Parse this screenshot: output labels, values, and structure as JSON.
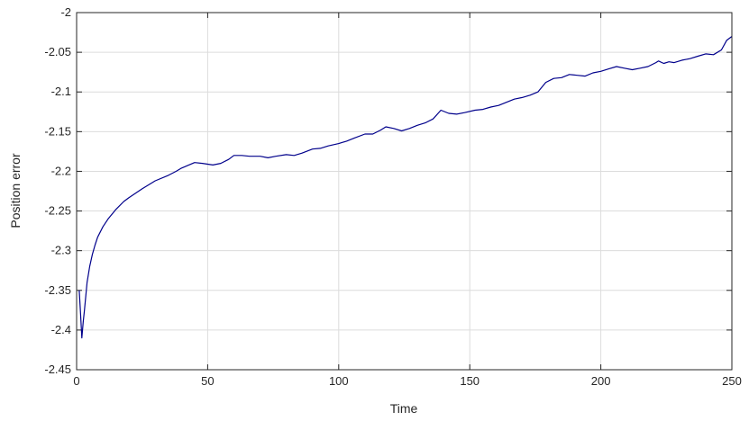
{
  "chart_data": {
    "type": "line",
    "title": "",
    "xlabel": "Time",
    "ylabel": "Position error",
    "xlim": [
      0,
      250
    ],
    "ylim": [
      -2.45,
      -2.0
    ],
    "xticks": [
      0,
      50,
      100,
      150,
      200,
      250
    ],
    "xtick_labels": [
      "0",
      "50",
      "100",
      "150",
      "200",
      "250"
    ],
    "yticks": [
      -2.0,
      -2.05,
      -2.1,
      -2.15,
      -2.2,
      -2.25,
      -2.3,
      -2.35,
      -2.4,
      -2.45
    ],
    "ytick_labels": [
      "-2",
      "-2.05",
      "-2.1",
      "-2.15",
      "-2.2",
      "-2.25",
      "-2.3",
      "-2.35",
      "-2.4",
      "-2.45"
    ],
    "grid": true,
    "legend": "none",
    "series": [
      {
        "color": "#00008b",
        "x": [
          1,
          1.5,
          2,
          2.5,
          3,
          4,
          5,
          6,
          7,
          8,
          10,
          12,
          15,
          18,
          20,
          25,
          30,
          35,
          38,
          40,
          45,
          48,
          52,
          55,
          58,
          60,
          63,
          66,
          70,
          73,
          76,
          80,
          83,
          86,
          90,
          93,
          96,
          100,
          103,
          106,
          110,
          113,
          116,
          118,
          121,
          124,
          127,
          130,
          133,
          136,
          139,
          142,
          145,
          148,
          152,
          155,
          158,
          161,
          164,
          167,
          170,
          173,
          176,
          179,
          182,
          185,
          188,
          191,
          194,
          197,
          200,
          203,
          206,
          209,
          212,
          215,
          218,
          221,
          222,
          224,
          226,
          228,
          231,
          234,
          237,
          240,
          243,
          246,
          248,
          250
        ],
        "y": [
          -2.35,
          -2.38,
          -2.41,
          -2.39,
          -2.375,
          -2.34,
          -2.32,
          -2.305,
          -2.293,
          -2.283,
          -2.27,
          -2.26,
          -2.248,
          -2.238,
          -2.233,
          -2.222,
          -2.212,
          -2.205,
          -2.2,
          -2.196,
          -2.189,
          -2.19,
          -2.192,
          -2.19,
          -2.185,
          -2.18,
          -2.18,
          -2.181,
          -2.181,
          -2.183,
          -2.181,
          -2.179,
          -2.18,
          -2.177,
          -2.172,
          -2.171,
          -2.168,
          -2.165,
          -2.162,
          -2.158,
          -2.153,
          -2.153,
          -2.148,
          -2.144,
          -2.146,
          -2.149,
          -2.146,
          -2.142,
          -2.139,
          -2.134,
          -2.123,
          -2.127,
          -2.128,
          -2.126,
          -2.123,
          -2.122,
          -2.119,
          -2.117,
          -2.113,
          -2.109,
          -2.107,
          -2.104,
          -2.1,
          -2.088,
          -2.083,
          -2.082,
          -2.078,
          -2.079,
          -2.08,
          -2.076,
          -2.074,
          -2.071,
          -2.068,
          -2.07,
          -2.072,
          -2.07,
          -2.068,
          -2.063,
          -2.061,
          -2.064,
          -2.062,
          -2.063,
          -2.06,
          -2.058,
          -2.055,
          -2.052,
          -2.053,
          -2.047,
          -2.035,
          -2.03
        ]
      }
    ]
  }
}
